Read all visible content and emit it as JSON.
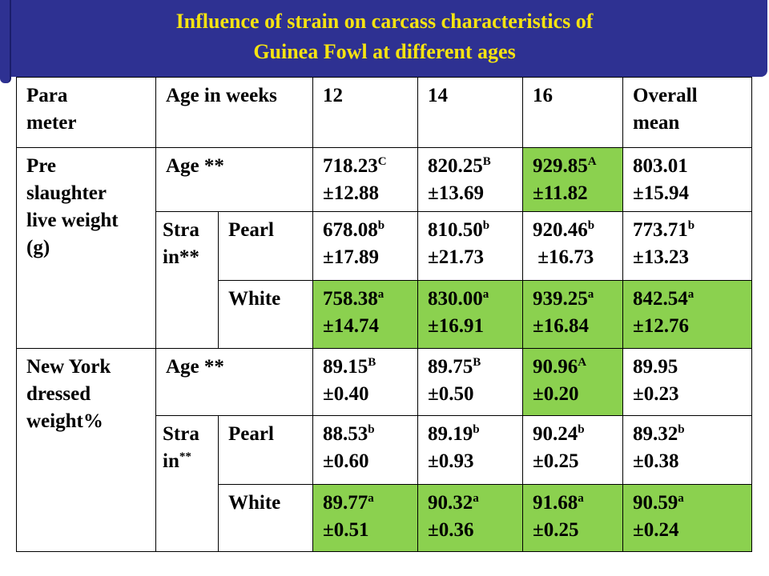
{
  "title": {
    "line1": "Influence of strain on carcass characteristics of",
    "line2": "Guinea Fowl at different ages"
  },
  "header": {
    "parameter_line1": "Para",
    "parameter_line2": "meter",
    "age_in_weeks": "Age in weeks",
    "week12": "12",
    "week14": "14",
    "week16": "16",
    "overall_line1": "Overall",
    "overall_line2": "mean"
  },
  "sections": [
    {
      "parameter_lines": [
        "Pre",
        "slaughter",
        "live weight",
        "(g)"
      ],
      "age_label": "Age **",
      "age_row": [
        {
          "value": "718.23",
          "sup": "C",
          "se": "±12.88",
          "highlight": false
        },
        {
          "value": "820.25",
          "sup": "B",
          "se": "±13.69",
          "highlight": false
        },
        {
          "value": "929.85",
          "sup": "A",
          "se": "±11.82",
          "highlight": true
        },
        {
          "value": "803.01",
          "sup": "",
          "se": "±15.94",
          "highlight": false
        }
      ],
      "strain_line1": "Stra",
      "strain_line2": "in",
      "strain_stars": "**",
      "pearl_label": "Pearl",
      "pearl_row": [
        {
          "value": "678.08",
          "sup": "b",
          "se": "±17.89",
          "highlight": false
        },
        {
          "value": "810.50",
          "sup": "b",
          "se": "±21.73",
          "highlight": false
        },
        {
          "value": "920.46",
          "sup": "b",
          "se": " ±16.73",
          "highlight": false
        },
        {
          "value": "773.71",
          "sup": "b",
          "se": "±13.23",
          "highlight": false
        }
      ],
      "white_label": "White",
      "white_row": [
        {
          "value": "758.38",
          "sup": "a",
          "se": "±14.74",
          "highlight": true
        },
        {
          "value": "830.00",
          "sup": "a",
          "se": "±16.91",
          "highlight": true
        },
        {
          "value": "939.25",
          "sup": "a",
          "se": "±16.84",
          "highlight": true
        },
        {
          "value": "842.54",
          "sup": "a",
          "se": "±12.76",
          "highlight": true
        }
      ]
    },
    {
      "parameter_lines": [
        "New York",
        "dressed",
        "weight%"
      ],
      "age_label": "Age **",
      "age_row": [
        {
          "value": "89.15",
          "sup": "B",
          "se": "±0.40",
          "highlight": false
        },
        {
          "value": "89.75",
          "sup": "B",
          "se": "±0.50",
          "highlight": false
        },
        {
          "value": "90.96",
          "sup": "A",
          "se": "±0.20",
          "highlight": true
        },
        {
          "value": "89.95",
          "sup": "",
          "se": "±0.23",
          "highlight": false
        }
      ],
      "strain_line1": "Stra",
      "strain_line2": "in",
      "strain_stars": "**",
      "pearl_label": "Pearl",
      "pearl_row": [
        {
          "value": "88.53",
          "sup": "b",
          "se": "±0.60",
          "highlight": false
        },
        {
          "value": "89.19",
          "sup": "b",
          "se": "±0.93",
          "highlight": false
        },
        {
          "value": "90.24",
          "sup": "b",
          "se": "±0.25",
          "highlight": false
        },
        {
          "value": "89.32",
          "sup": "b",
          "se": "±0.38",
          "highlight": false
        }
      ],
      "white_label": "White",
      "white_row": [
        {
          "value": "89.77",
          "sup": "a",
          "se": "±0.51",
          "highlight": true
        },
        {
          "value": "90.32",
          "sup": "a",
          "se": "±0.36",
          "highlight": true
        },
        {
          "value": "91.68",
          "sup": "a",
          "se": "±0.25",
          "highlight": true
        },
        {
          "value": "90.59",
          "sup": "a",
          "se": "±0.24",
          "highlight": true
        }
      ]
    }
  ]
}
